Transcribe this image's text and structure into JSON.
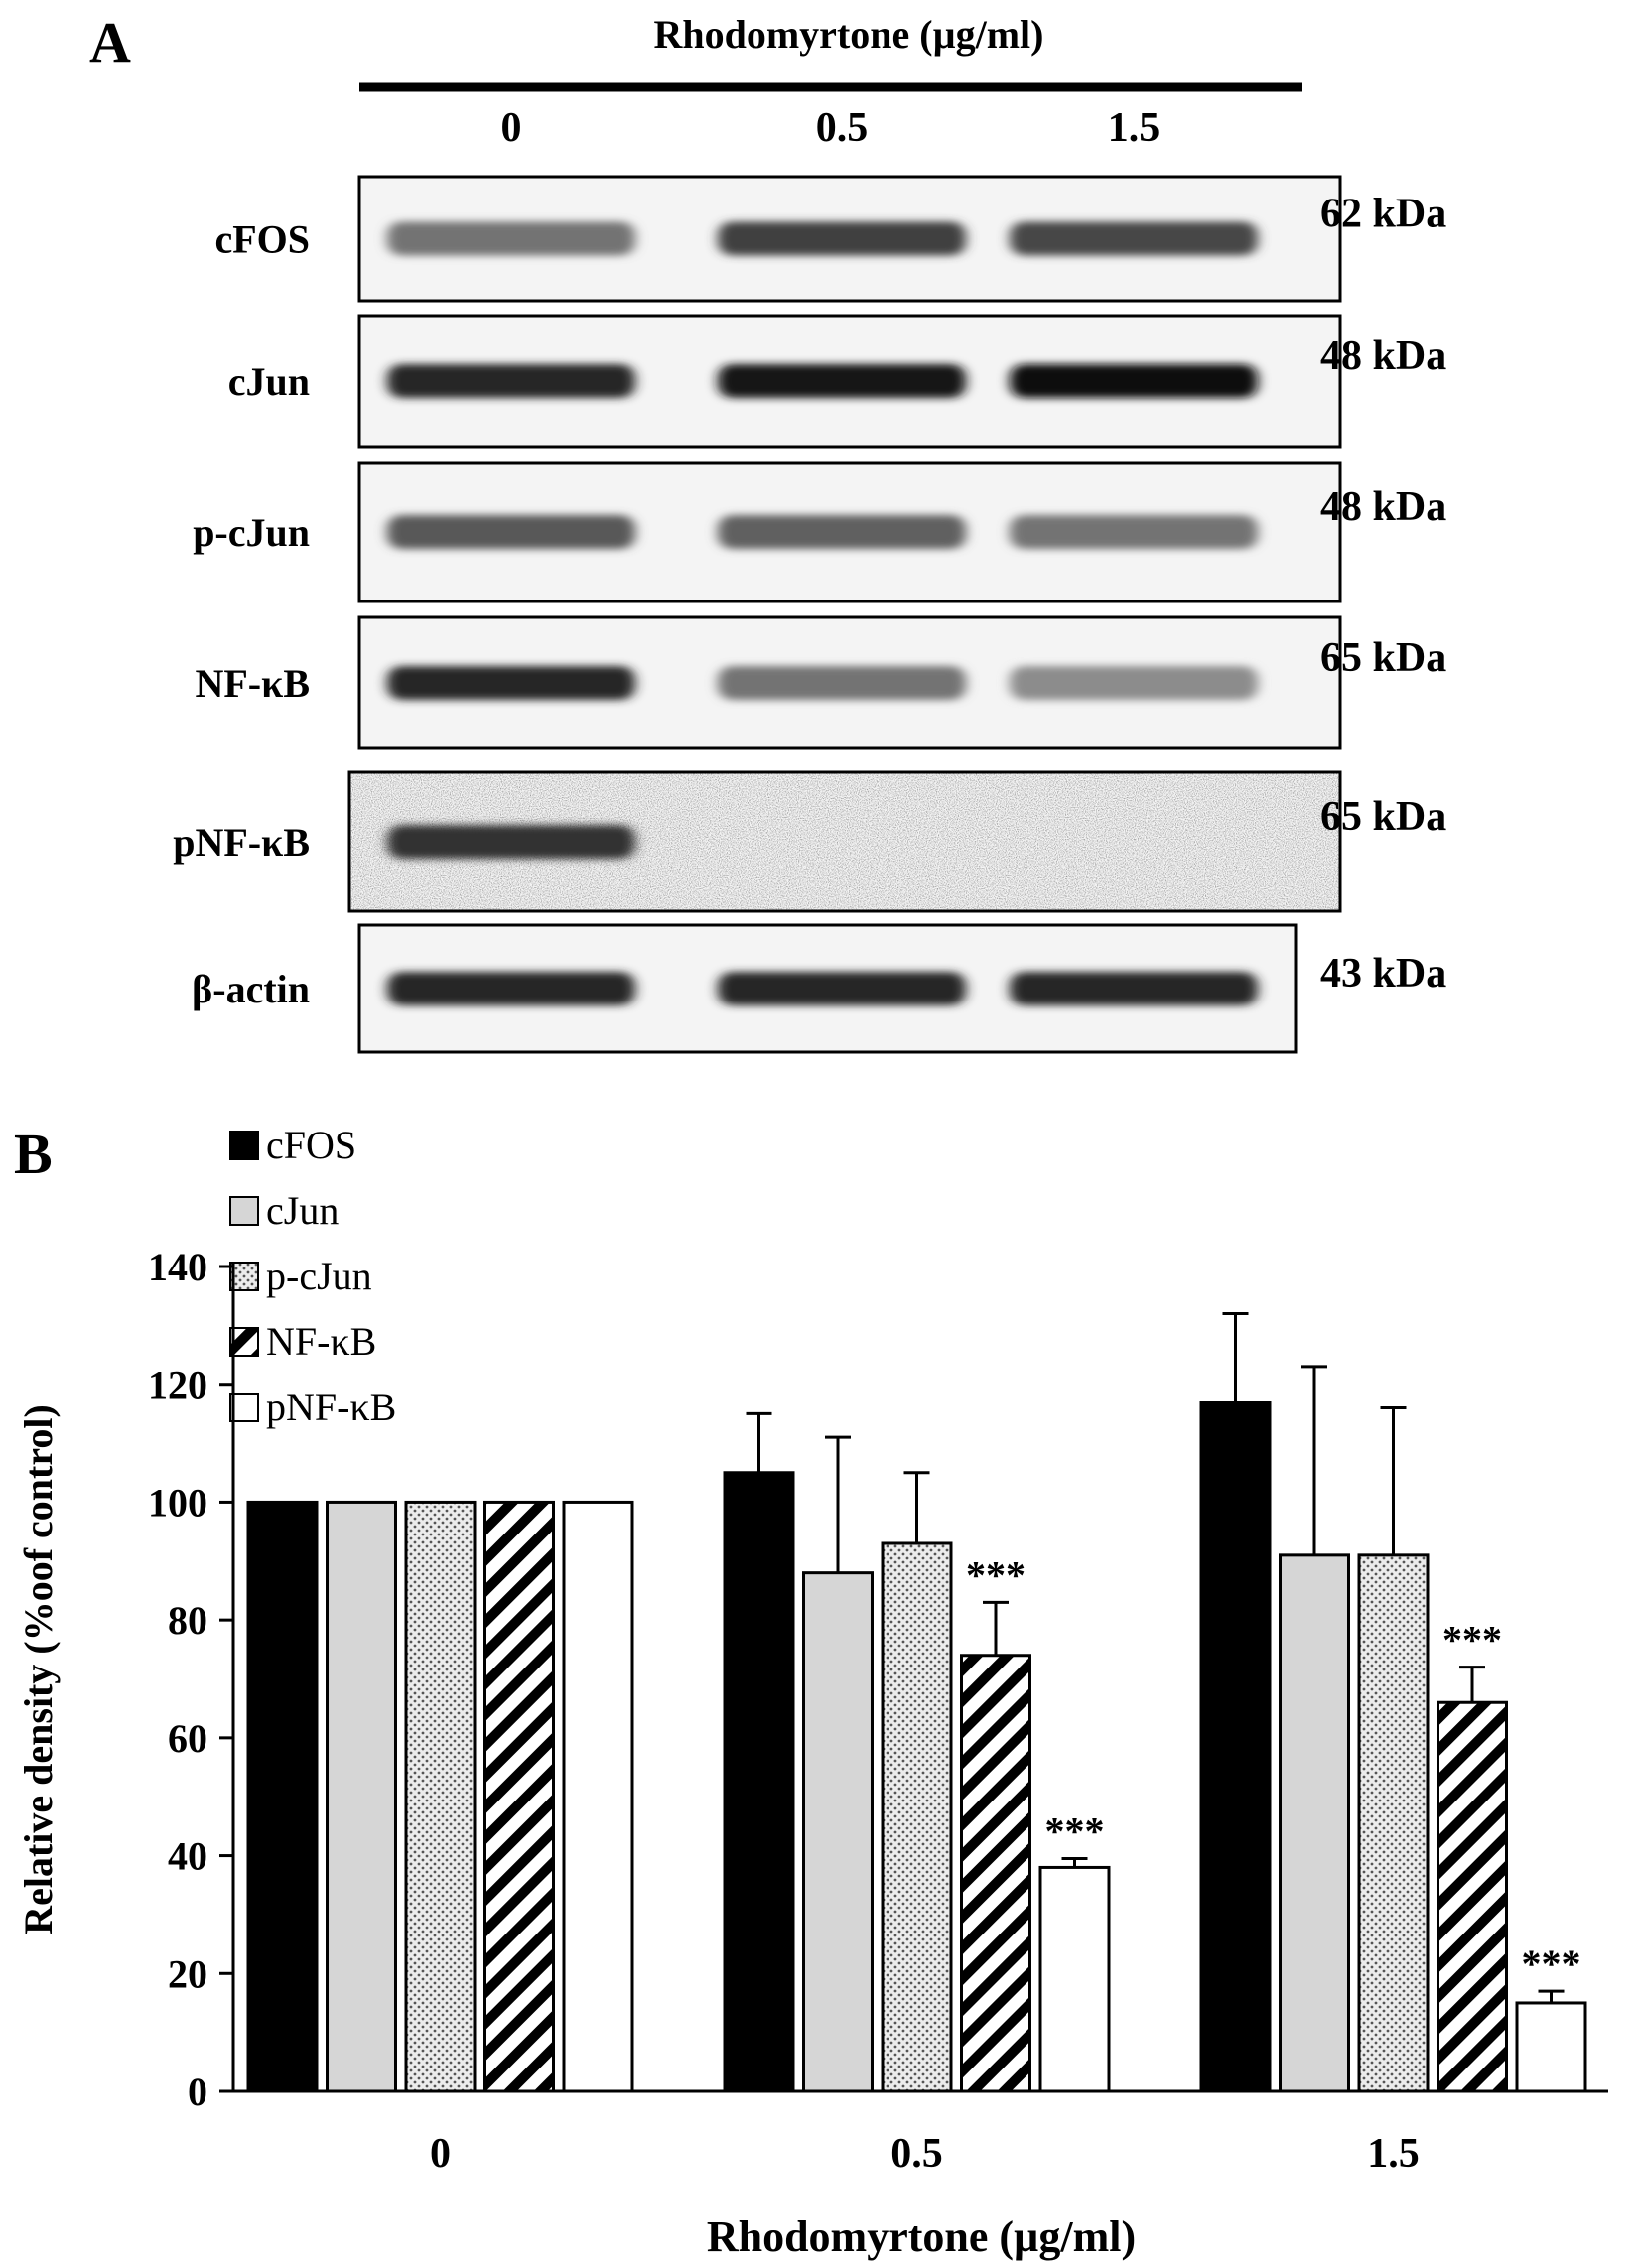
{
  "panel_a": {
    "label": "A",
    "treatment_label": "Rhodomyrtone (µg/ml)",
    "doses": [
      "0",
      "0.5",
      "1.5"
    ],
    "blots": [
      {
        "protein": "cFOS",
        "mw": "62 kDa",
        "lane_intensity": [
          0.55,
          0.75,
          0.72
        ]
      },
      {
        "protein": "cJun",
        "mw": "48 kDa",
        "lane_intensity": [
          0.85,
          0.9,
          0.95
        ]
      },
      {
        "protein": "p-cJun",
        "mw": "48 kDa",
        "lane_intensity": [
          0.65,
          0.62,
          0.55
        ]
      },
      {
        "protein": "NF-κB",
        "mw": "65 kDa",
        "lane_intensity": [
          0.85,
          0.55,
          0.45
        ]
      },
      {
        "protein": "pNF-κB",
        "mw": "65 kDa",
        "lane_intensity": [
          0.8,
          0.0,
          0.0
        ]
      },
      {
        "protein": "β-actin",
        "mw": "43 kDa",
        "lane_intensity": [
          0.85,
          0.85,
          0.85
        ]
      }
    ]
  },
  "chart_data": {
    "type": "bar",
    "panel_label": "B",
    "xlabel": "Rhodomyrtone (µg/ml)",
    "ylabel": "Relative density (%oof control)",
    "ylim": [
      0,
      140
    ],
    "yticks": [
      0,
      20,
      40,
      60,
      80,
      100,
      120,
      140
    ],
    "categories": [
      "0",
      "0.5",
      "1.5"
    ],
    "legend_position": "top-left",
    "series": [
      {
        "name": "cFOS",
        "pattern": "solid-black",
        "values": [
          100,
          105,
          117
        ],
        "errors": [
          0,
          10,
          15
        ],
        "significance": [
          "",
          "",
          ""
        ]
      },
      {
        "name": "cJun",
        "pattern": "light-gray",
        "values": [
          100,
          88,
          91
        ],
        "errors": [
          0,
          23,
          32
        ],
        "significance": [
          "",
          "",
          ""
        ]
      },
      {
        "name": "p-cJun",
        "pattern": "dotted",
        "values": [
          100,
          93,
          91
        ],
        "errors": [
          0,
          12,
          25
        ],
        "significance": [
          "",
          "",
          ""
        ]
      },
      {
        "name": "NF-κB",
        "pattern": "diagonal-hatch",
        "values": [
          100,
          74,
          66
        ],
        "errors": [
          0,
          9,
          6
        ],
        "significance": [
          "",
          "***",
          "***"
        ]
      },
      {
        "name": "pNF-κB",
        "pattern": "white",
        "values": [
          100,
          38,
          15
        ],
        "errors": [
          0,
          1.5,
          2
        ],
        "significance": [
          "",
          "***",
          "***"
        ]
      }
    ]
  }
}
